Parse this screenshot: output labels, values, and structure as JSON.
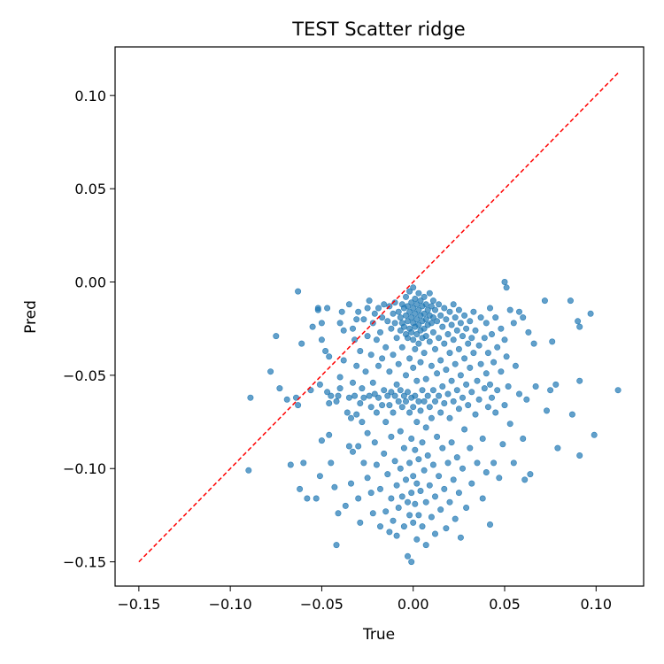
{
  "chart_data": {
    "type": "scatter",
    "title": "TEST Scatter ridge",
    "xlabel": "True",
    "ylabel": "Pred",
    "xlim": [
      -0.163,
      0.126
    ],
    "ylim": [
      -0.163,
      0.126
    ],
    "xticks": [
      -0.15,
      -0.1,
      -0.05,
      0.0,
      0.05,
      0.1
    ],
    "yticks": [
      -0.15,
      -0.1,
      -0.05,
      0.0,
      0.05,
      0.1
    ],
    "xtick_labels": [
      "−0.15",
      "−0.10",
      "−0.05",
      "0.00",
      "0.05",
      "0.10"
    ],
    "ytick_labels": [
      "−0.15",
      "−0.10",
      "−0.05",
      "0.00",
      "0.05",
      "0.10"
    ],
    "grid": false,
    "legend": "none",
    "point_color": "#1f77b4",
    "reference_line": {
      "style": "dashed",
      "color": "#ff0000",
      "x": [
        -0.15,
        0.112
      ],
      "y": [
        -0.15,
        0.112
      ]
    },
    "points": [
      [
        -0.089,
        -0.062
      ],
      [
        -0.09,
        -0.101
      ],
      [
        -0.078,
        -0.048
      ],
      [
        -0.075,
        -0.029
      ],
      [
        -0.073,
        -0.057
      ],
      [
        -0.069,
        -0.063
      ],
      [
        -0.067,
        -0.098
      ],
      [
        -0.064,
        -0.062
      ],
      [
        -0.063,
        -0.066
      ],
      [
        -0.063,
        -0.005
      ],
      [
        -0.062,
        -0.111
      ],
      [
        -0.061,
        -0.033
      ],
      [
        -0.06,
        -0.097
      ],
      [
        -0.058,
        -0.116
      ],
      [
        -0.056,
        -0.058
      ],
      [
        -0.055,
        -0.024
      ],
      [
        -0.053,
        -0.116
      ],
      [
        -0.052,
        -0.015
      ],
      [
        -0.052,
        -0.014
      ],
      [
        -0.051,
        -0.055
      ],
      [
        -0.051,
        -0.104
      ],
      [
        -0.05,
        -0.031
      ],
      [
        -0.05,
        -0.022
      ],
      [
        -0.05,
        -0.085
      ],
      [
        -0.048,
        -0.037
      ],
      [
        -0.047,
        -0.014
      ],
      [
        -0.047,
        -0.059
      ],
      [
        -0.046,
        -0.082
      ],
      [
        -0.046,
        -0.04
      ],
      [
        -0.046,
        -0.065
      ],
      [
        -0.045,
        -0.097
      ],
      [
        -0.045,
        -0.061
      ],
      [
        -0.043,
        -0.11
      ],
      [
        -0.042,
        -0.064
      ],
      [
        -0.042,
        -0.141
      ],
      [
        -0.041,
        -0.061
      ],
      [
        -0.041,
        -0.124
      ],
      [
        -0.04,
        -0.057
      ],
      [
        -0.04,
        -0.022
      ],
      [
        -0.04,
        -0.051
      ],
      [
        -0.039,
        -0.016
      ],
      [
        -0.038,
        -0.042
      ],
      [
        -0.038,
        -0.026
      ],
      [
        -0.037,
        -0.12
      ],
      [
        -0.036,
        -0.07
      ],
      [
        -0.035,
        -0.088
      ],
      [
        -0.035,
        -0.062
      ],
      [
        -0.035,
        -0.012
      ],
      [
        -0.034,
        -0.108
      ],
      [
        -0.034,
        -0.073
      ],
      [
        -0.033,
        -0.025
      ],
      [
        -0.033,
        -0.054
      ],
      [
        -0.033,
        -0.091
      ],
      [
        -0.032,
        -0.061
      ],
      [
        -0.032,
        -0.031
      ],
      [
        -0.031,
        -0.071
      ],
      [
        -0.031,
        -0.02
      ],
      [
        -0.031,
        -0.045
      ],
      [
        -0.03,
        -0.088
      ],
      [
        -0.03,
        -0.116
      ],
      [
        -0.03,
        -0.016
      ],
      [
        -0.029,
        -0.129
      ],
      [
        -0.029,
        -0.065
      ],
      [
        -0.029,
        -0.037
      ],
      [
        -0.028,
        -0.057
      ],
      [
        -0.028,
        -0.075
      ],
      [
        -0.027,
        -0.02
      ],
      [
        -0.027,
        -0.097
      ],
      [
        -0.027,
        -0.062
      ],
      [
        -0.026,
        -0.048
      ],
      [
        -0.025,
        -0.014
      ],
      [
        -0.025,
        -0.081
      ],
      [
        -0.025,
        -0.105
      ],
      [
        -0.025,
        -0.029
      ],
      [
        -0.024,
        -0.061
      ],
      [
        -0.024,
        -0.01
      ],
      [
        -0.023,
        -0.039
      ],
      [
        -0.023,
        -0.067
      ],
      [
        -0.023,
        -0.113
      ],
      [
        -0.022,
        -0.124
      ],
      [
        -0.022,
        -0.054
      ],
      [
        -0.022,
        -0.022
      ],
      [
        -0.021,
        -0.086
      ],
      [
        -0.021,
        -0.06
      ],
      [
        -0.021,
        -0.017
      ],
      [
        -0.02,
        -0.031
      ],
      [
        -0.02,
        -0.07
      ],
      [
        -0.02,
        -0.098
      ],
      [
        -0.019,
        -0.045
      ],
      [
        -0.019,
        -0.062
      ],
      [
        -0.019,
        -0.014
      ],
      [
        -0.018,
        -0.111
      ],
      [
        -0.018,
        -0.131
      ],
      [
        -0.018,
        -0.027
      ],
      [
        -0.017,
        -0.066
      ],
      [
        -0.017,
        -0.041
      ],
      [
        -0.017,
        -0.019
      ],
      [
        -0.016,
        -0.092
      ],
      [
        -0.016,
        -0.012
      ],
      [
        -0.016,
        -0.058
      ],
      [
        -0.015,
        -0.075
      ],
      [
        -0.015,
        -0.035
      ],
      [
        -0.015,
        -0.123
      ],
      [
        -0.014,
        -0.021
      ],
      [
        -0.014,
        -0.061
      ],
      [
        -0.014,
        -0.103
      ],
      [
        -0.013,
        -0.048
      ],
      [
        -0.013,
        -0.013
      ],
      [
        -0.013,
        -0.066
      ],
      [
        -0.013,
        -0.134
      ],
      [
        -0.012,
        -0.025
      ],
      [
        -0.012,
        -0.083
      ],
      [
        -0.012,
        -0.059
      ],
      [
        -0.012,
        -0.116
      ],
      [
        -0.011,
        -0.017
      ],
      [
        -0.011,
        -0.039
      ],
      [
        -0.011,
        -0.07
      ],
      [
        -0.011,
        -0.128
      ],
      [
        -0.01,
        -0.022
      ],
      [
        -0.01,
        -0.061
      ],
      [
        -0.01,
        -0.096
      ],
      [
        -0.01,
        -0.011
      ],
      [
        -0.009,
        -0.03
      ],
      [
        -0.009,
        -0.055
      ],
      [
        -0.009,
        -0.109
      ],
      [
        -0.009,
        -0.136
      ],
      [
        -0.008,
        -0.016
      ],
      [
        -0.008,
        -0.064
      ],
      [
        -0.008,
        -0.044
      ],
      [
        -0.008,
        -0.121
      ],
      [
        -0.007,
        -0.019
      ],
      [
        -0.007,
        -0.026
      ],
      [
        -0.007,
        -0.08
      ],
      [
        -0.007,
        -0.1
      ],
      [
        -0.007,
        -0.058
      ],
      [
        -0.006,
        -0.012
      ],
      [
        -0.006,
        -0.022
      ],
      [
        -0.006,
        -0.067
      ],
      [
        -0.006,
        -0.115
      ],
      [
        -0.006,
        -0.035
      ],
      [
        -0.005,
        -0.014
      ],
      [
        -0.005,
        -0.024
      ],
      [
        -0.005,
        -0.061
      ],
      [
        -0.005,
        -0.131
      ],
      [
        -0.005,
        -0.089
      ],
      [
        -0.004,
        -0.008
      ],
      [
        -0.004,
        -0.018
      ],
      [
        -0.004,
        -0.028
      ],
      [
        -0.004,
        -0.05
      ],
      [
        -0.004,
        -0.106
      ],
      [
        -0.004,
        -0.064
      ],
      [
        -0.003,
        -0.013
      ],
      [
        -0.003,
        -0.021
      ],
      [
        -0.003,
        -0.03
      ],
      [
        -0.003,
        -0.059
      ],
      [
        -0.003,
        -0.118
      ],
      [
        -0.003,
        -0.147
      ],
      [
        -0.002,
        -0.005
      ],
      [
        -0.002,
        -0.016
      ],
      [
        -0.002,
        -0.025
      ],
      [
        -0.002,
        -0.041
      ],
      [
        -0.002,
        -0.07
      ],
      [
        -0.002,
        -0.097
      ],
      [
        -0.002,
        -0.125
      ],
      [
        -0.001,
        -0.011
      ],
      [
        -0.001,
        -0.019
      ],
      [
        -0.001,
        -0.027
      ],
      [
        -0.001,
        -0.062
      ],
      [
        -0.001,
        -0.084
      ],
      [
        -0.001,
        -0.113
      ],
      [
        -0.001,
        -0.15
      ],
      [
        0.0,
        -0.003
      ],
      [
        0.0,
        -0.014
      ],
      [
        0.0,
        -0.022
      ],
      [
        0.0,
        -0.031
      ],
      [
        0.0,
        -0.046
      ],
      [
        0.0,
        -0.067
      ],
      [
        0.0,
        -0.104
      ],
      [
        0.0,
        -0.129
      ],
      [
        0.001,
        -0.009
      ],
      [
        0.001,
        -0.017
      ],
      [
        0.001,
        -0.024
      ],
      [
        0.001,
        -0.036
      ],
      [
        0.001,
        -0.061
      ],
      [
        0.001,
        -0.09
      ],
      [
        0.001,
        -0.119
      ],
      [
        0.002,
        -0.012
      ],
      [
        0.002,
        -0.02
      ],
      [
        0.002,
        -0.028
      ],
      [
        0.002,
        -0.053
      ],
      [
        0.002,
        -0.075
      ],
      [
        0.002,
        -0.108
      ],
      [
        0.002,
        -0.138
      ],
      [
        0.003,
        -0.006
      ],
      [
        0.003,
        -0.015
      ],
      [
        0.003,
        -0.023
      ],
      [
        0.003,
        -0.033
      ],
      [
        0.003,
        -0.064
      ],
      [
        0.003,
        -0.095
      ],
      [
        0.003,
        -0.125
      ],
      [
        0.004,
        -0.01
      ],
      [
        0.004,
        -0.018
      ],
      [
        0.004,
        -0.026
      ],
      [
        0.004,
        -0.043
      ],
      [
        0.004,
        -0.069
      ],
      [
        0.004,
        -0.112
      ],
      [
        0.005,
        -0.013
      ],
      [
        0.005,
        -0.021
      ],
      [
        0.005,
        -0.03
      ],
      [
        0.005,
        -0.058
      ],
      [
        0.005,
        -0.086
      ],
      [
        0.005,
        -0.131
      ],
      [
        0.006,
        -0.008
      ],
      [
        0.006,
        -0.017
      ],
      [
        0.006,
        -0.025
      ],
      [
        0.006,
        -0.038
      ],
      [
        0.006,
        -0.064
      ],
      [
        0.006,
        -0.101
      ],
      [
        0.007,
        -0.012
      ],
      [
        0.007,
        -0.02
      ],
      [
        0.007,
        -0.029
      ],
      [
        0.007,
        -0.052
      ],
      [
        0.007,
        -0.078
      ],
      [
        0.007,
        -0.118
      ],
      [
        0.007,
        -0.141
      ],
      [
        0.008,
        -0.015
      ],
      [
        0.008,
        -0.023
      ],
      [
        0.008,
        -0.061
      ],
      [
        0.008,
        -0.093
      ],
      [
        0.009,
        -0.006
      ],
      [
        0.009,
        -0.018
      ],
      [
        0.009,
        -0.032
      ],
      [
        0.009,
        -0.067
      ],
      [
        0.009,
        -0.109
      ],
      [
        0.01,
        -0.013
      ],
      [
        0.01,
        -0.022
      ],
      [
        0.01,
        -0.045
      ],
      [
        0.01,
        -0.073
      ],
      [
        0.01,
        -0.126
      ],
      [
        0.011,
        -0.01
      ],
      [
        0.011,
        -0.019
      ],
      [
        0.011,
        -0.027
      ],
      [
        0.011,
        -0.058
      ],
      [
        0.011,
        -0.098
      ],
      [
        0.012,
        -0.015
      ],
      [
        0.012,
        -0.036
      ],
      [
        0.012,
        -0.064
      ],
      [
        0.012,
        -0.115
      ],
      [
        0.012,
        -0.135
      ],
      [
        0.013,
        -0.021
      ],
      [
        0.013,
        -0.049
      ],
      [
        0.013,
        -0.083
      ],
      [
        0.014,
        -0.012
      ],
      [
        0.014,
        -0.03
      ],
      [
        0.014,
        -0.061
      ],
      [
        0.014,
        -0.104
      ],
      [
        0.015,
        -0.018
      ],
      [
        0.015,
        -0.042
      ],
      [
        0.015,
        -0.07
      ],
      [
        0.015,
        -0.122
      ],
      [
        0.016,
        -0.024
      ],
      [
        0.016,
        -0.056
      ],
      [
        0.016,
        -0.089
      ],
      [
        0.017,
        -0.014
      ],
      [
        0.017,
        -0.033
      ],
      [
        0.017,
        -0.065
      ],
      [
        0.017,
        -0.111
      ],
      [
        0.018,
        -0.02
      ],
      [
        0.018,
        -0.047
      ],
      [
        0.018,
        -0.132
      ],
      [
        0.019,
        -0.028
      ],
      [
        0.019,
        -0.06
      ],
      [
        0.019,
        -0.097
      ],
      [
        0.02,
        -0.016
      ],
      [
        0.02,
        -0.038
      ],
      [
        0.02,
        -0.073
      ],
      [
        0.02,
        -0.118
      ],
      [
        0.021,
        -0.023
      ],
      [
        0.021,
        -0.053
      ],
      [
        0.021,
        -0.086
      ],
      [
        0.022,
        -0.012
      ],
      [
        0.022,
        -0.031
      ],
      [
        0.022,
        -0.064
      ],
      [
        0.022,
        -0.106
      ],
      [
        0.023,
        -0.019
      ],
      [
        0.023,
        -0.044
      ],
      [
        0.023,
        -0.127
      ],
      [
        0.024,
        -0.026
      ],
      [
        0.024,
        -0.058
      ],
      [
        0.024,
        -0.094
      ],
      [
        0.025,
        -0.015
      ],
      [
        0.025,
        -0.036
      ],
      [
        0.025,
        -0.068
      ],
      [
        0.025,
        -0.113
      ],
      [
        0.026,
        -0.022
      ],
      [
        0.026,
        -0.05
      ],
      [
        0.026,
        -0.137
      ],
      [
        0.027,
        -0.029
      ],
      [
        0.027,
        -0.062
      ],
      [
        0.027,
        -0.1
      ],
      [
        0.028,
        -0.018
      ],
      [
        0.028,
        -0.041
      ],
      [
        0.028,
        -0.079
      ],
      [
        0.029,
        -0.025
      ],
      [
        0.029,
        -0.055
      ],
      [
        0.029,
        -0.121
      ],
      [
        0.03,
        -0.033
      ],
      [
        0.03,
        -0.066
      ],
      [
        0.031,
        -0.021
      ],
      [
        0.031,
        -0.046
      ],
      [
        0.031,
        -0.089
      ],
      [
        0.032,
        -0.03
      ],
      [
        0.032,
        -0.059
      ],
      [
        0.032,
        -0.108
      ],
      [
        0.033,
        -0.016
      ],
      [
        0.033,
        -0.038
      ],
      [
        0.034,
        -0.071
      ],
      [
        0.034,
        -0.026
      ],
      [
        0.035,
        -0.053
      ],
      [
        0.035,
        -0.097
      ],
      [
        0.036,
        -0.034
      ],
      [
        0.036,
        -0.063
      ],
      [
        0.037,
        -0.019
      ],
      [
        0.037,
        -0.044
      ],
      [
        0.038,
        -0.084
      ],
      [
        0.038,
        -0.116
      ],
      [
        0.039,
        -0.03
      ],
      [
        0.039,
        -0.057
      ],
      [
        0.04,
        -0.022
      ],
      [
        0.04,
        -0.049
      ],
      [
        0.04,
        -0.102
      ],
      [
        0.041,
        -0.038
      ],
      [
        0.041,
        -0.067
      ],
      [
        0.042,
        -0.014
      ],
      [
        0.042,
        -0.055
      ],
      [
        0.042,
        -0.13
      ],
      [
        0.043,
        -0.028
      ],
      [
        0.043,
        -0.062
      ],
      [
        0.044,
        -0.043
      ],
      [
        0.044,
        -0.097
      ],
      [
        0.045,
        -0.019
      ],
      [
        0.045,
        -0.07
      ],
      [
        0.046,
        -0.035
      ],
      [
        0.046,
        -0.058
      ],
      [
        0.047,
        -0.105
      ],
      [
        0.048,
        -0.025
      ],
      [
        0.048,
        -0.048
      ],
      [
        0.049,
        -0.087
      ],
      [
        0.05,
        0.0
      ],
      [
        0.05,
        -0.031
      ],
      [
        0.05,
        -0.066
      ],
      [
        0.051,
        -0.003
      ],
      [
        0.051,
        -0.04
      ],
      [
        0.052,
        -0.056
      ],
      [
        0.053,
        -0.015
      ],
      [
        0.053,
        -0.076
      ],
      [
        0.055,
        -0.022
      ],
      [
        0.055,
        -0.097
      ],
      [
        0.056,
        -0.045
      ],
      [
        0.058,
        -0.016
      ],
      [
        0.058,
        -0.06
      ],
      [
        0.06,
        -0.019
      ],
      [
        0.06,
        -0.084
      ],
      [
        0.061,
        -0.106
      ],
      [
        0.062,
        -0.063
      ],
      [
        0.063,
        -0.027
      ],
      [
        0.064,
        -0.103
      ],
      [
        0.066,
        -0.033
      ],
      [
        0.067,
        -0.056
      ],
      [
        0.072,
        -0.01
      ],
      [
        0.073,
        -0.069
      ],
      [
        0.075,
        -0.058
      ],
      [
        0.076,
        -0.032
      ],
      [
        0.078,
        -0.055
      ],
      [
        0.079,
        -0.089
      ],
      [
        0.086,
        -0.01
      ],
      [
        0.087,
        -0.071
      ],
      [
        0.09,
        -0.021
      ],
      [
        0.091,
        -0.024
      ],
      [
        0.091,
        -0.053
      ],
      [
        0.091,
        -0.093
      ],
      [
        0.097,
        -0.017
      ],
      [
        0.099,
        -0.082
      ],
      [
        0.112,
        -0.058
      ]
    ]
  }
}
